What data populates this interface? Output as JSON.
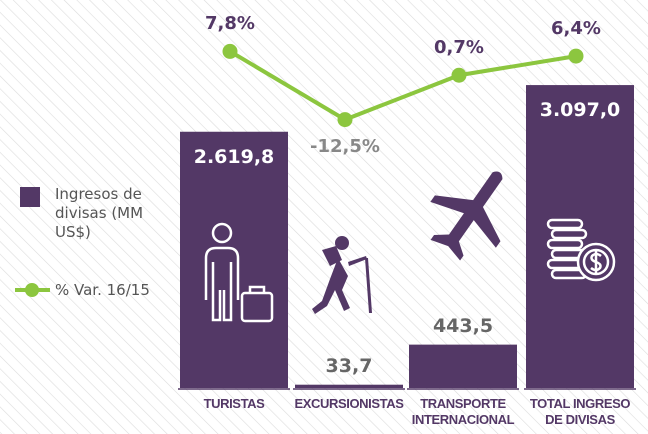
{
  "chart_data": {
    "type": "bar",
    "categories": [
      "TURISTAS",
      "EXCURSIONISTAS",
      "TRANSPORTE INTERNACIONAL",
      "TOTAL INGRESO DE DIVISAS"
    ],
    "series": [
      {
        "name": "Ingresos de divisas (MM US$)",
        "type": "bar",
        "color": "#533866",
        "values": [
          2619.8,
          33.7,
          443.5,
          3097.0
        ],
        "value_labels": [
          "2.619,8",
          "33,7",
          "443,5",
          "3.097,0"
        ]
      },
      {
        "name": "% Var. 16/15",
        "type": "line",
        "axis": "y2",
        "color": "#8cc63f",
        "values": [
          7.8,
          -12.5,
          0.7,
          6.4
        ],
        "value_labels": [
          "7,8%",
          "-12,5%",
          "0,7%",
          "6,4%"
        ]
      }
    ],
    "ylim": [
      0,
      3200
    ],
    "y2lim": [
      -15,
      10
    ]
  }
}
